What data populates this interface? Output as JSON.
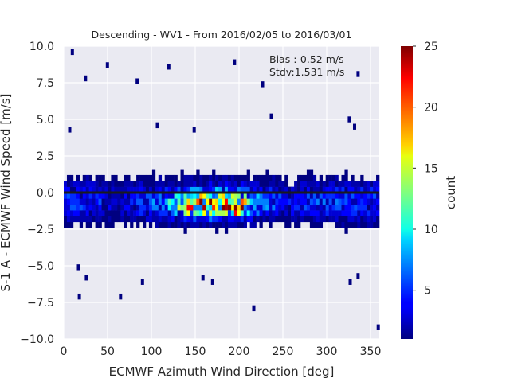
{
  "chart_data": {
    "type": "heatmap",
    "title": "Descending - WV1 - From 2016/02/05 to 2016/03/01",
    "xlabel": "ECMWF Azimuth Wind Direction [deg]",
    "ylabel": "S-1 A - ECMWF Wind Speed [m/s]",
    "xlim": [
      0,
      360
    ],
    "ylim": [
      -10,
      10
    ],
    "x_ticks": [
      0,
      50,
      100,
      150,
      200,
      250,
      300,
      350
    ],
    "y_ticks": [
      -10.0,
      -7.5,
      -5.0,
      -2.5,
      0.0,
      2.5,
      5.0,
      7.5,
      10.0
    ],
    "x_tick_labels": [
      "0",
      "50",
      "100",
      "150",
      "200",
      "250",
      "300",
      "350"
    ],
    "y_tick_labels": [
      "−10.0",
      "−7.5",
      "−5.0",
      "−2.5",
      "0.0",
      "2.5",
      "5.0",
      "7.5",
      "10.0"
    ],
    "grid": true,
    "bin_size": {
      "x": 3.6,
      "y": 0.4
    },
    "colormap": "jet",
    "colorbar": {
      "label": "count",
      "min": 1,
      "max": 25,
      "ticks": [
        5,
        10,
        15,
        20,
        25
      ],
      "tick_labels": [
        "5",
        "10",
        "15",
        "20",
        "25"
      ]
    },
    "annotations": [
      "Bias :-0.52 m/s",
      "Stdv:1.531 m/s"
    ],
    "zero_line": 0.0,
    "density_model": {
      "description_of_distribution": "counts concentrated near y≈-0.5 to -1.0 between x≈130 and x≈220; peak ≈25 near x≈190,y≈-1.0; band extends across 0–360 with counts 1–10 between y≈-3 and y≈+2.5; sparse outliers",
      "peak_value": 25,
      "core_center_x": [
        150,
        195
      ],
      "core_center_y": -0.8
    },
    "outliers": [
      [
        8,
        9.6
      ],
      [
        23,
        7.8
      ],
      [
        48,
        8.7
      ],
      [
        82,
        7.6
      ],
      [
        118,
        8.6
      ],
      [
        193,
        8.9
      ],
      [
        225,
        7.4
      ],
      [
        334,
        8.1
      ],
      [
        5,
        4.3
      ],
      [
        105,
        4.6
      ],
      [
        147,
        4.3
      ],
      [
        235,
        5.2
      ],
      [
        324,
        5.0
      ],
      [
        330,
        4.5
      ],
      [
        357,
        -9.2
      ],
      [
        215,
        -7.9
      ],
      [
        63,
        -7.1
      ],
      [
        16,
        -7.1
      ],
      [
        88,
        -6.1
      ],
      [
        157,
        -5.8
      ],
      [
        168,
        -6.1
      ],
      [
        325,
        -6.1
      ],
      [
        334,
        -5.7
      ],
      [
        24,
        -5.8
      ],
      [
        15,
        -5.1
      ]
    ]
  }
}
